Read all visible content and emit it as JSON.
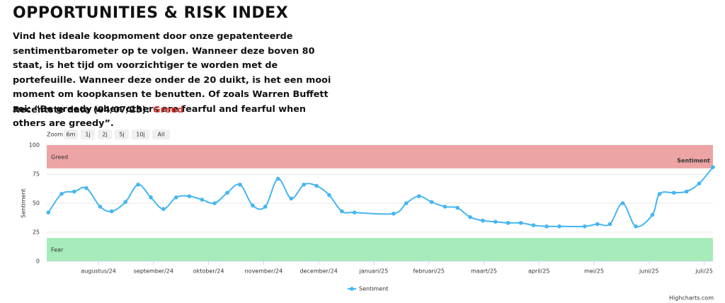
{
  "title": "OPPORTUNITIES & RISK INDEX",
  "description": "Vind het ideale koopmoment door onze gepatenteerde sentimentbarometer op te volgen. Wanneer deze boven 80 staat, is het tijd om voorzichtiger te worden met de portefeuille. Wanneer deze onder de 20 duikt, is het een mooi moment om koopkansen te benutten. Of zoals Warren Buffett zei: “Be greedy when others are fearful and fearful when others are greedy”.",
  "recent_label": "Recentste data (04/07/25):",
  "recent_value": "Greed",
  "chart_data": {
    "type": "line",
    "zoom_label": "Zoom",
    "zoom": [
      "6m",
      "1j",
      "2j",
      "5j",
      "10j",
      "All"
    ],
    "y_label": "Sentiment",
    "credits": "Highcharts.com",
    "grid": true,
    "legend": "bottom",
    "xlim": [
      0.06,
      12.16
    ],
    "xticks": [
      {
        "value": 1,
        "label": "augustus/24"
      },
      {
        "value": 2,
        "label": "september/24"
      },
      {
        "value": 3,
        "label": "oktober/24"
      },
      {
        "value": 4,
        "label": "november/24"
      },
      {
        "value": 5,
        "label": "december/24"
      },
      {
        "value": 6,
        "label": "januari/25"
      },
      {
        "value": 7,
        "label": "februari/25"
      },
      {
        "value": 8,
        "label": "maart/25"
      },
      {
        "value": 9,
        "label": "april/25"
      },
      {
        "value": 10,
        "label": "mei/25"
      },
      {
        "value": 11,
        "label": "juni/25"
      },
      {
        "value": 12,
        "label": "juli/25"
      }
    ],
    "ylim": [
      0,
      100
    ],
    "yticks": [
      0,
      25,
      50,
      75,
      100
    ],
    "bands": [
      {
        "label": "Greed",
        "from": 80,
        "to": 100,
        "color": "#eca4a4"
      },
      {
        "label": "Fear",
        "from": 0,
        "to": 20,
        "color": "#a6ebb9"
      }
    ],
    "x": [
      0.09,
      0.33,
      0.56,
      0.78,
      1.03,
      1.24,
      1.49,
      1.72,
      1.95,
      2.18,
      2.41,
      2.65,
      2.88,
      3.11,
      3.34,
      3.57,
      3.8,
      4.03,
      4.26,
      4.5,
      4.73,
      4.96,
      5.19,
      5.42,
      5.65,
      6.36,
      6.59,
      6.82,
      7.05,
      7.29,
      7.52,
      7.75,
      7.98,
      8.21,
      8.44,
      8.67,
      8.9,
      9.14,
      9.37,
      9.83,
      10.06,
      10.29,
      10.52,
      10.76,
      11.06,
      11.19,
      11.45,
      11.68,
      11.91,
      12.16
    ],
    "series": [
      {
        "name": "Sentiment",
        "color": "#45b6f0",
        "values": [
          42,
          58,
          60,
          63,
          47,
          43,
          51,
          66,
          55,
          45,
          55,
          56,
          53,
          50,
          59,
          66,
          48,
          47,
          71,
          54,
          66,
          65,
          57,
          43,
          42,
          41,
          50,
          56,
          51,
          47,
          46,
          38,
          35,
          34,
          33,
          33,
          31,
          30,
          30,
          30,
          32,
          32,
          50,
          30,
          40,
          58,
          59,
          60,
          67,
          81
        ]
      }
    ]
  }
}
